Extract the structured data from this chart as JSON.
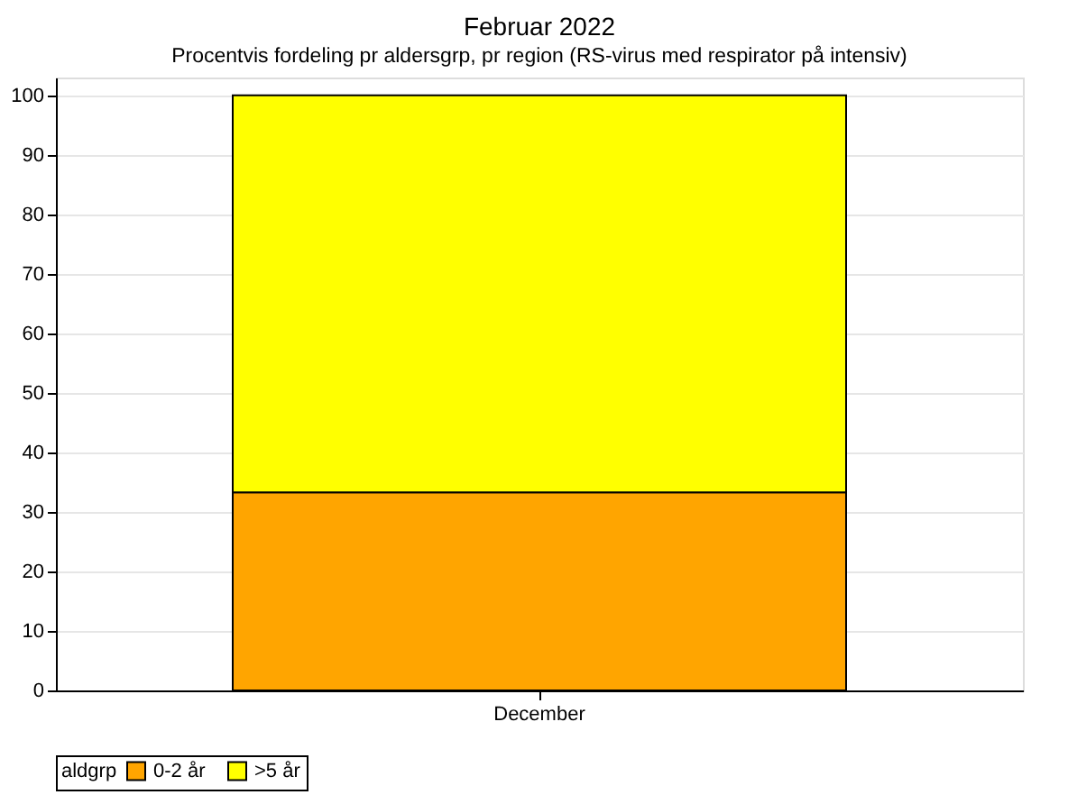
{
  "chart_data": {
    "type": "bar",
    "title": "Februar 2022",
    "subtitle": "Procentvis fordeling pr aldersgrp, pr region (RS-virus med respirator på intensiv)",
    "categories": [
      "December"
    ],
    "stacked": true,
    "legend_title": "aldgrp",
    "legend": "bottom",
    "grid": "y",
    "series": [
      {
        "name": "0-2 år",
        "color": "#ffa500",
        "values": [
          33.3
        ]
      },
      {
        "name": ">5 år",
        "color": "#ffff00",
        "values": [
          66.7
        ]
      }
    ],
    "ylim": [
      0,
      103
    ],
    "yticks": [
      0,
      10,
      20,
      30,
      40,
      50,
      60,
      70,
      80,
      90,
      100
    ]
  }
}
